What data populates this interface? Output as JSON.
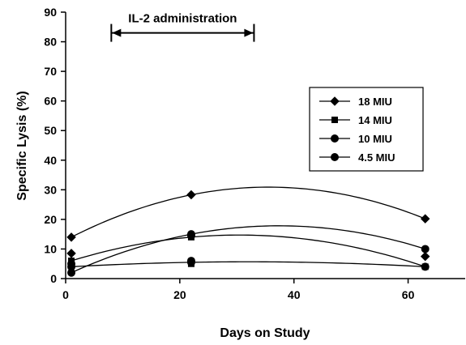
{
  "chart_data": {
    "type": "scatter",
    "title": "",
    "xlabel": "Days on Study",
    "ylabel": "Specific Lysis (%)",
    "xlim": [
      0,
      70
    ],
    "ylim": [
      0,
      90
    ],
    "xticks": [
      0,
      20,
      40,
      60
    ],
    "yticks": [
      0,
      10,
      20,
      30,
      40,
      50,
      60,
      70,
      80,
      90
    ],
    "grid": false,
    "legend_placement": "right-middle",
    "annotation": {
      "text": "IL-2 administration",
      "x_start": 8,
      "x_end": 33,
      "y": 83
    },
    "series": [
      {
        "name": "18 MIU",
        "marker": "diamond",
        "x": [
          1,
          22,
          63
        ],
        "y": [
          14,
          28.3,
          20.2
        ]
      },
      {
        "name": "14 MIU",
        "marker": "square",
        "x": [
          1,
          22,
          63
        ],
        "y": [
          6,
          14,
          4
        ]
      },
      {
        "name": "10 MIU",
        "marker": "circle",
        "x": [
          1,
          22,
          63
        ],
        "y": [
          4,
          5.5,
          4
        ]
      },
      {
        "name": "4.5 MIU",
        "marker": "circle",
        "x": [
          1,
          22,
          63
        ],
        "y": [
          2,
          15,
          10
        ]
      }
    ],
    "extra_points": [
      {
        "series": "18 MIU",
        "x": 1,
        "y": 8.5
      },
      {
        "series": "18 MIU",
        "x": 63,
        "y": 7.5
      },
      {
        "series": "14 MIU",
        "x": 22,
        "y": 5
      },
      {
        "series": "10 MIU",
        "x": 22,
        "y": 6
      },
      {
        "series": "4.5 MIU",
        "x": 1,
        "y": 5
      },
      {
        "series": "4.5 MIU",
        "x": 22,
        "y": 14.5
      }
    ],
    "colors": {
      "ink": "#000000",
      "background": "#ffffff"
    }
  }
}
